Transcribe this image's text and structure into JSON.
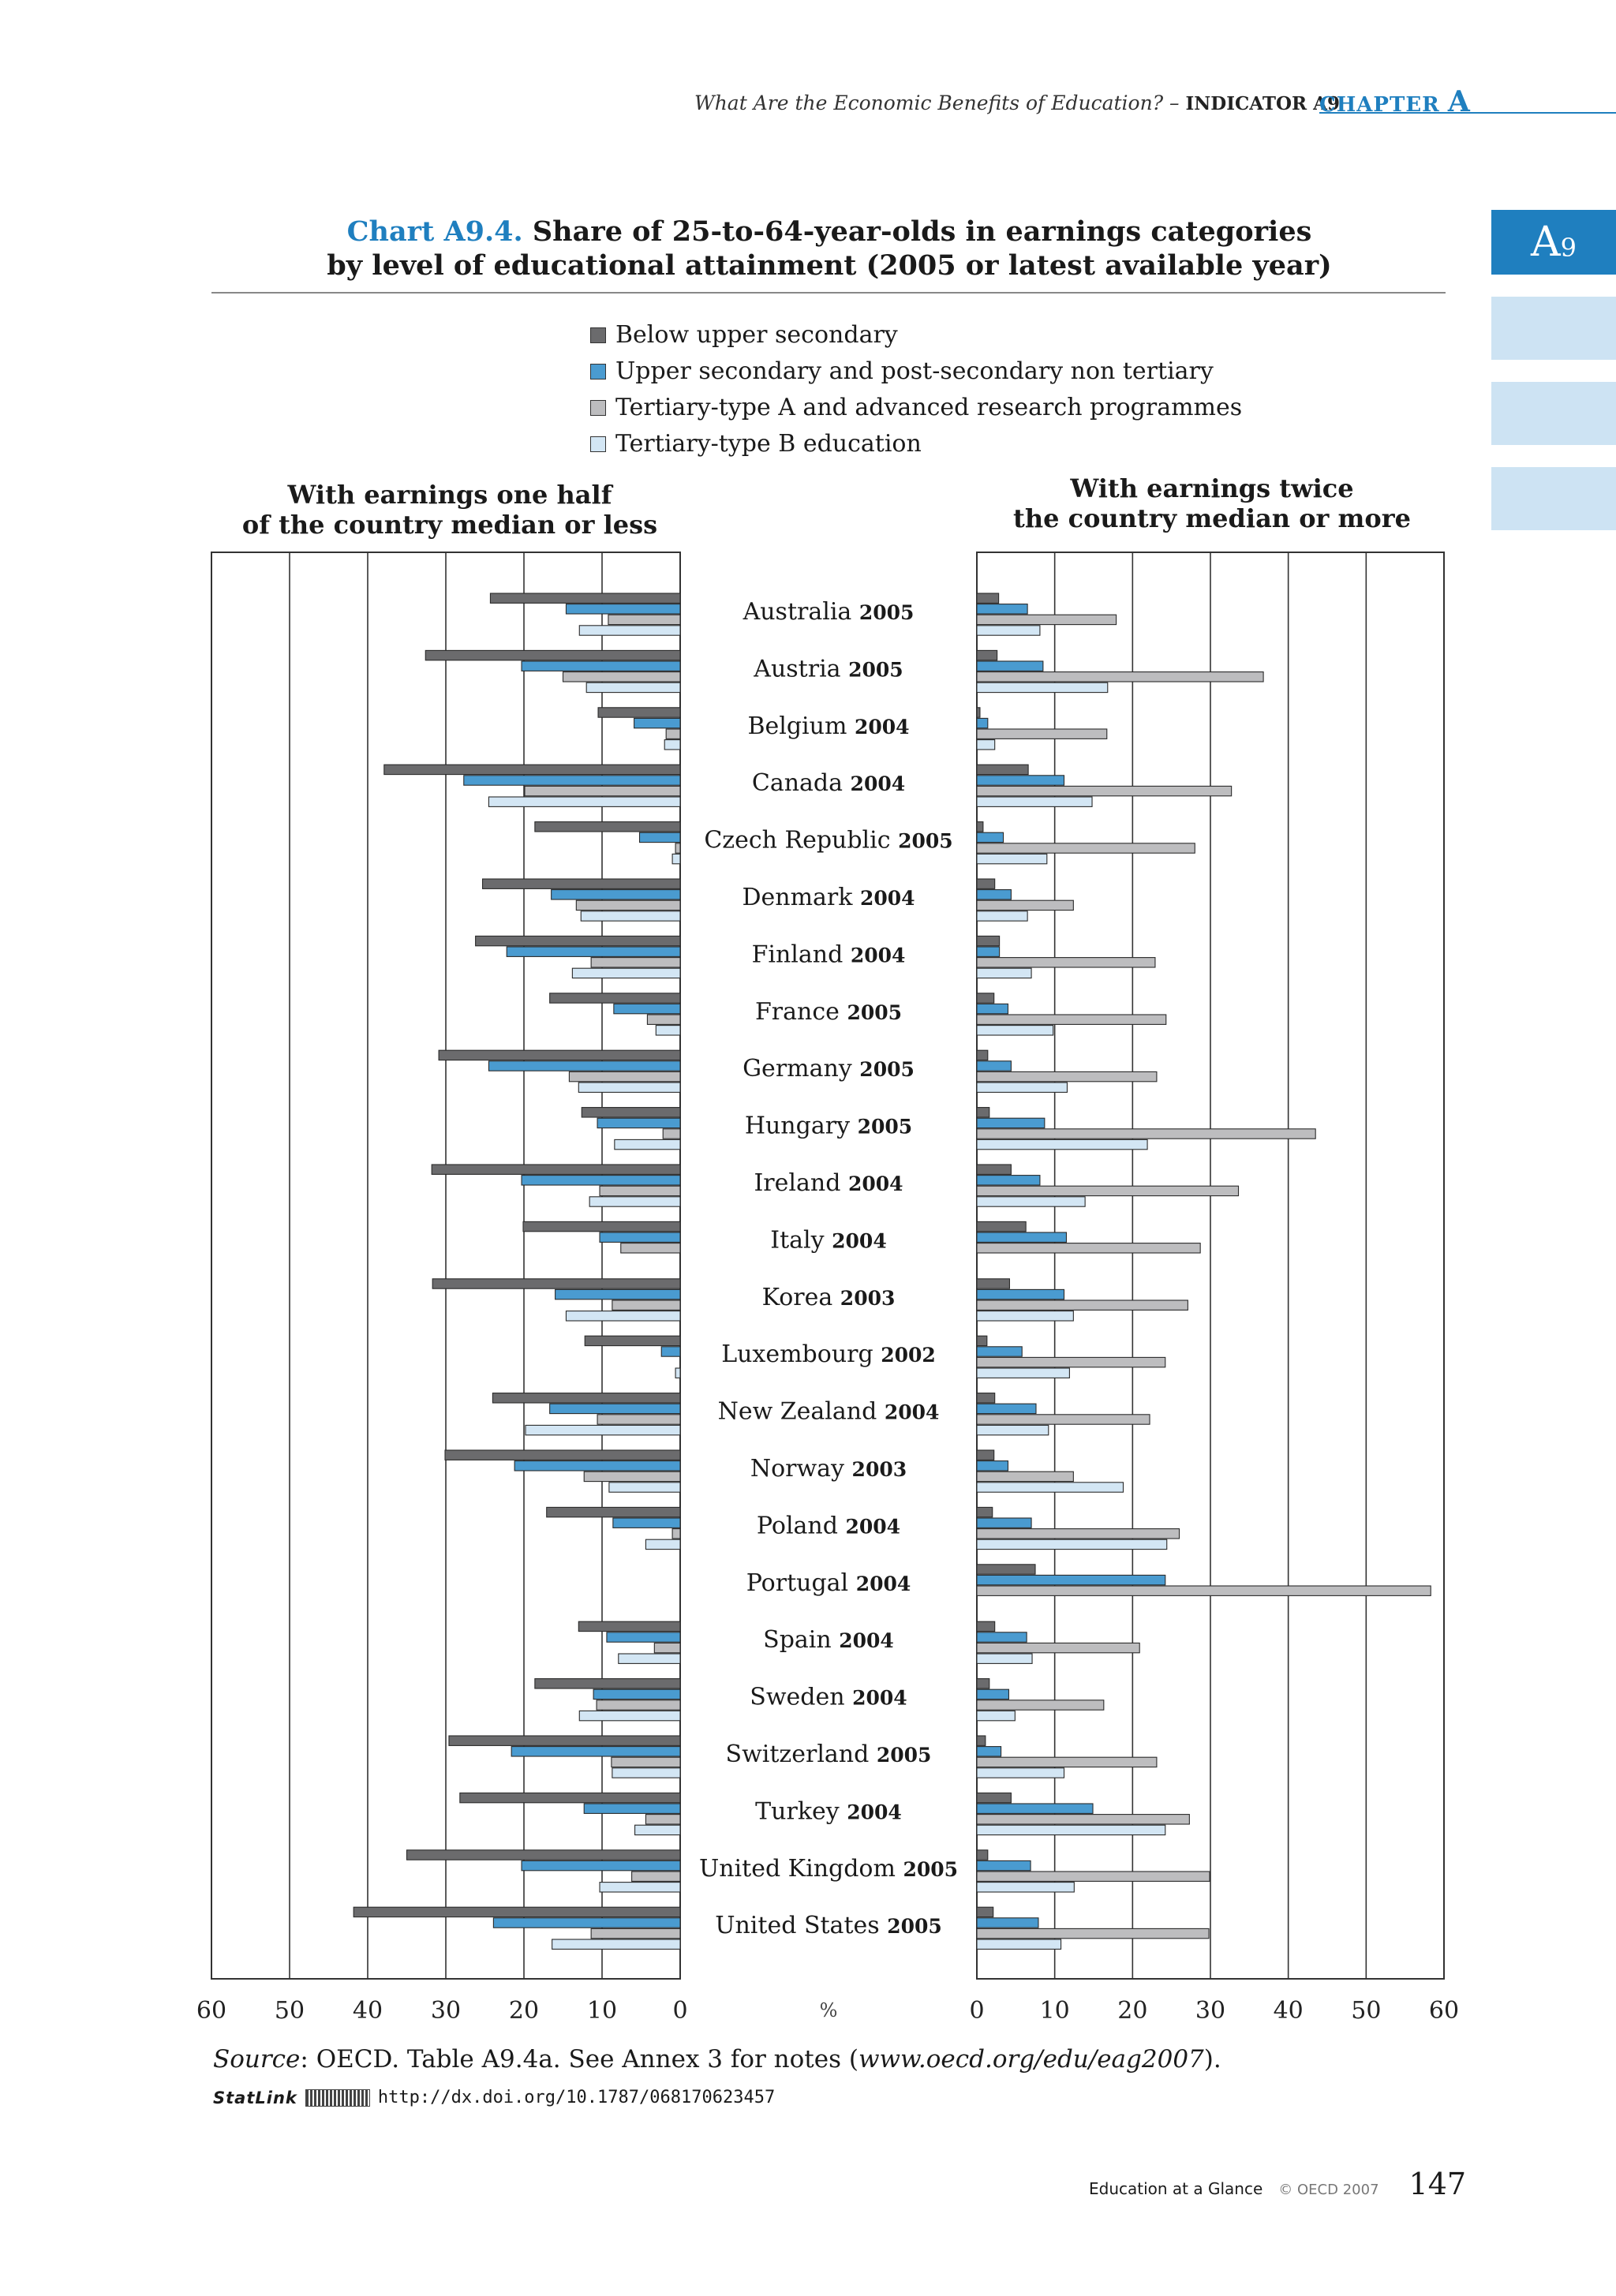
{
  "header": {
    "running_title": "What Are the Economic Benefits of Education? –",
    "indicator": "INDICATOR A9",
    "chapter_word": "CHAPTER",
    "chapter_letter": "A"
  },
  "side_tab": {
    "main": "A",
    "sub": "9"
  },
  "chart_title": {
    "number": "Chart A9.4.",
    "line1": "Share of 25-to-64-year-olds in earnings categories",
    "line2": "by level of educational attainment (2005 or latest available year)"
  },
  "panel_heads": {
    "left_line1": "With earnings one half",
    "left_line2": "of the country median or less",
    "right_line1": "With earnings twice",
    "right_line2": "the country median or more"
  },
  "colors": {
    "below_upper_secondary": "#6b6b6d",
    "upper_secondary": "#4a9bd0",
    "tertiary_a": "#bdbdbf",
    "tertiary_b": "#d3e6f4"
  },
  "chart_data": {
    "type": "bar",
    "orientation": "horizontal",
    "xlabel": "%",
    "xlim": [
      0,
      60
    ],
    "xticks": [
      0,
      10,
      20,
      30,
      40,
      50,
      60
    ],
    "legend": [
      "Below upper secondary",
      "Upper secondary and post-secondary non tertiary",
      "Tertiary-type A and advanced research programmes",
      "Tertiary-type B education"
    ],
    "categories": [
      {
        "country": "Australia",
        "year": "2005"
      },
      {
        "country": "Austria",
        "year": "2005"
      },
      {
        "country": "Belgium",
        "year": "2004"
      },
      {
        "country": "Canada",
        "year": "2004"
      },
      {
        "country": "Czech Republic",
        "year": "2005"
      },
      {
        "country": "Denmark",
        "year": "2004"
      },
      {
        "country": "Finland",
        "year": "2004"
      },
      {
        "country": "France",
        "year": "2005"
      },
      {
        "country": "Germany",
        "year": "2005"
      },
      {
        "country": "Hungary",
        "year": "2005"
      },
      {
        "country": "Ireland",
        "year": "2004"
      },
      {
        "country": "Italy",
        "year": "2004"
      },
      {
        "country": "Korea",
        "year": "2003"
      },
      {
        "country": "Luxembourg",
        "year": "2002"
      },
      {
        "country": "New Zealand",
        "year": "2004"
      },
      {
        "country": "Norway",
        "year": "2003"
      },
      {
        "country": "Poland",
        "year": "2004"
      },
      {
        "country": "Portugal",
        "year": "2004"
      },
      {
        "country": "Spain",
        "year": "2004"
      },
      {
        "country": "Sweden",
        "year": "2004"
      },
      {
        "country": "Switzerland",
        "year": "2005"
      },
      {
        "country": "Turkey",
        "year": "2004"
      },
      {
        "country": "United Kingdom",
        "year": "2005"
      },
      {
        "country": "United States",
        "year": "2005"
      }
    ],
    "panels": [
      {
        "name": "With earnings one half of the country median or less",
        "series": [
          {
            "name": "Below upper secondary",
            "values": [
              24.3,
              32.6,
              10.5,
              37.9,
              18.6,
              25.3,
              26.2,
              16.7,
              30.9,
              12.6,
              31.8,
              20.1,
              31.7,
              12.2,
              24.0,
              30.1,
              17.1,
              null,
              13.0,
              18.6,
              29.6,
              28.2,
              35.0,
              41.8
            ]
          },
          {
            "name": "Upper secondary and post-secondary non tertiary",
            "values": [
              14.6,
              20.3,
              5.9,
              27.7,
              5.2,
              16.5,
              22.2,
              8.5,
              24.5,
              10.6,
              20.3,
              10.3,
              16.0,
              2.4,
              16.7,
              21.2,
              8.6,
              null,
              9.4,
              11.1,
              21.6,
              12.3,
              20.3,
              23.9
            ]
          },
          {
            "name": "Tertiary-type A and advanced research programmes",
            "values": [
              9.2,
              15.0,
              1.8,
              19.9,
              0.6,
              13.3,
              11.4,
              4.2,
              14.2,
              2.2,
              10.3,
              7.6,
              8.7,
              null,
              10.6,
              12.3,
              1.0,
              null,
              3.3,
              10.7,
              8.8,
              4.4,
              6.2,
              11.4
            ]
          },
          {
            "name": "Tertiary-type B education",
            "values": [
              12.9,
              12.0,
              2.0,
              24.5,
              1.0,
              12.7,
              13.8,
              3.1,
              13.0,
              8.4,
              11.6,
              null,
              14.6,
              0.6,
              19.8,
              9.1,
              4.4,
              null,
              7.9,
              12.9,
              8.7,
              5.8,
              10.3,
              16.4
            ]
          }
        ]
      },
      {
        "name": "With earnings twice the country median or more",
        "series": [
          {
            "name": "Below upper secondary",
            "values": [
              2.8,
              2.6,
              0.4,
              6.6,
              0.8,
              2.3,
              2.9,
              2.2,
              1.4,
              1.6,
              4.4,
              6.3,
              4.2,
              1.3,
              2.3,
              2.2,
              2.0,
              7.5,
              2.3,
              1.6,
              1.1,
              4.4,
              1.4,
              2.1
            ]
          },
          {
            "name": "Upper secondary and post-secondary non tertiary",
            "values": [
              6.5,
              8.5,
              1.4,
              11.2,
              3.4,
              4.4,
              2.9,
              4.0,
              4.4,
              8.7,
              8.1,
              11.5,
              11.2,
              5.8,
              7.6,
              4.0,
              7.0,
              24.2,
              6.4,
              4.1,
              3.1,
              14.9,
              6.9,
              7.9
            ]
          },
          {
            "name": "Tertiary-type A and advanced research programmes",
            "values": [
              17.9,
              36.8,
              16.7,
              32.7,
              28.0,
              12.4,
              22.9,
              24.3,
              23.1,
              43.5,
              33.6,
              28.7,
              27.1,
              24.2,
              22.2,
              12.4,
              26.0,
              58.3,
              20.9,
              16.3,
              23.1,
              27.3,
              29.9,
              29.8
            ]
          },
          {
            "name": "Tertiary-type B education",
            "values": [
              8.1,
              16.8,
              2.3,
              14.8,
              9.0,
              6.5,
              7.0,
              9.8,
              11.6,
              21.9,
              13.9,
              null,
              12.4,
              11.9,
              9.2,
              18.8,
              24.4,
              null,
              7.1,
              4.9,
              11.2,
              24.2,
              12.5,
              10.8
            ]
          }
        ]
      }
    ],
    "grid": true
  },
  "source": {
    "label": "Source",
    "text": ": OECD. Table A9.4a. See Annex 3 for notes (",
    "url": "www.oecd.org/edu/eag2007",
    "end": ")."
  },
  "statlink": {
    "word": "StatLink",
    "url": "http://dx.doi.org/10.1787/068170623457"
  },
  "footer": {
    "publication": "Education at a Glance",
    "copyright": "© OECD 2007",
    "page": "147"
  }
}
